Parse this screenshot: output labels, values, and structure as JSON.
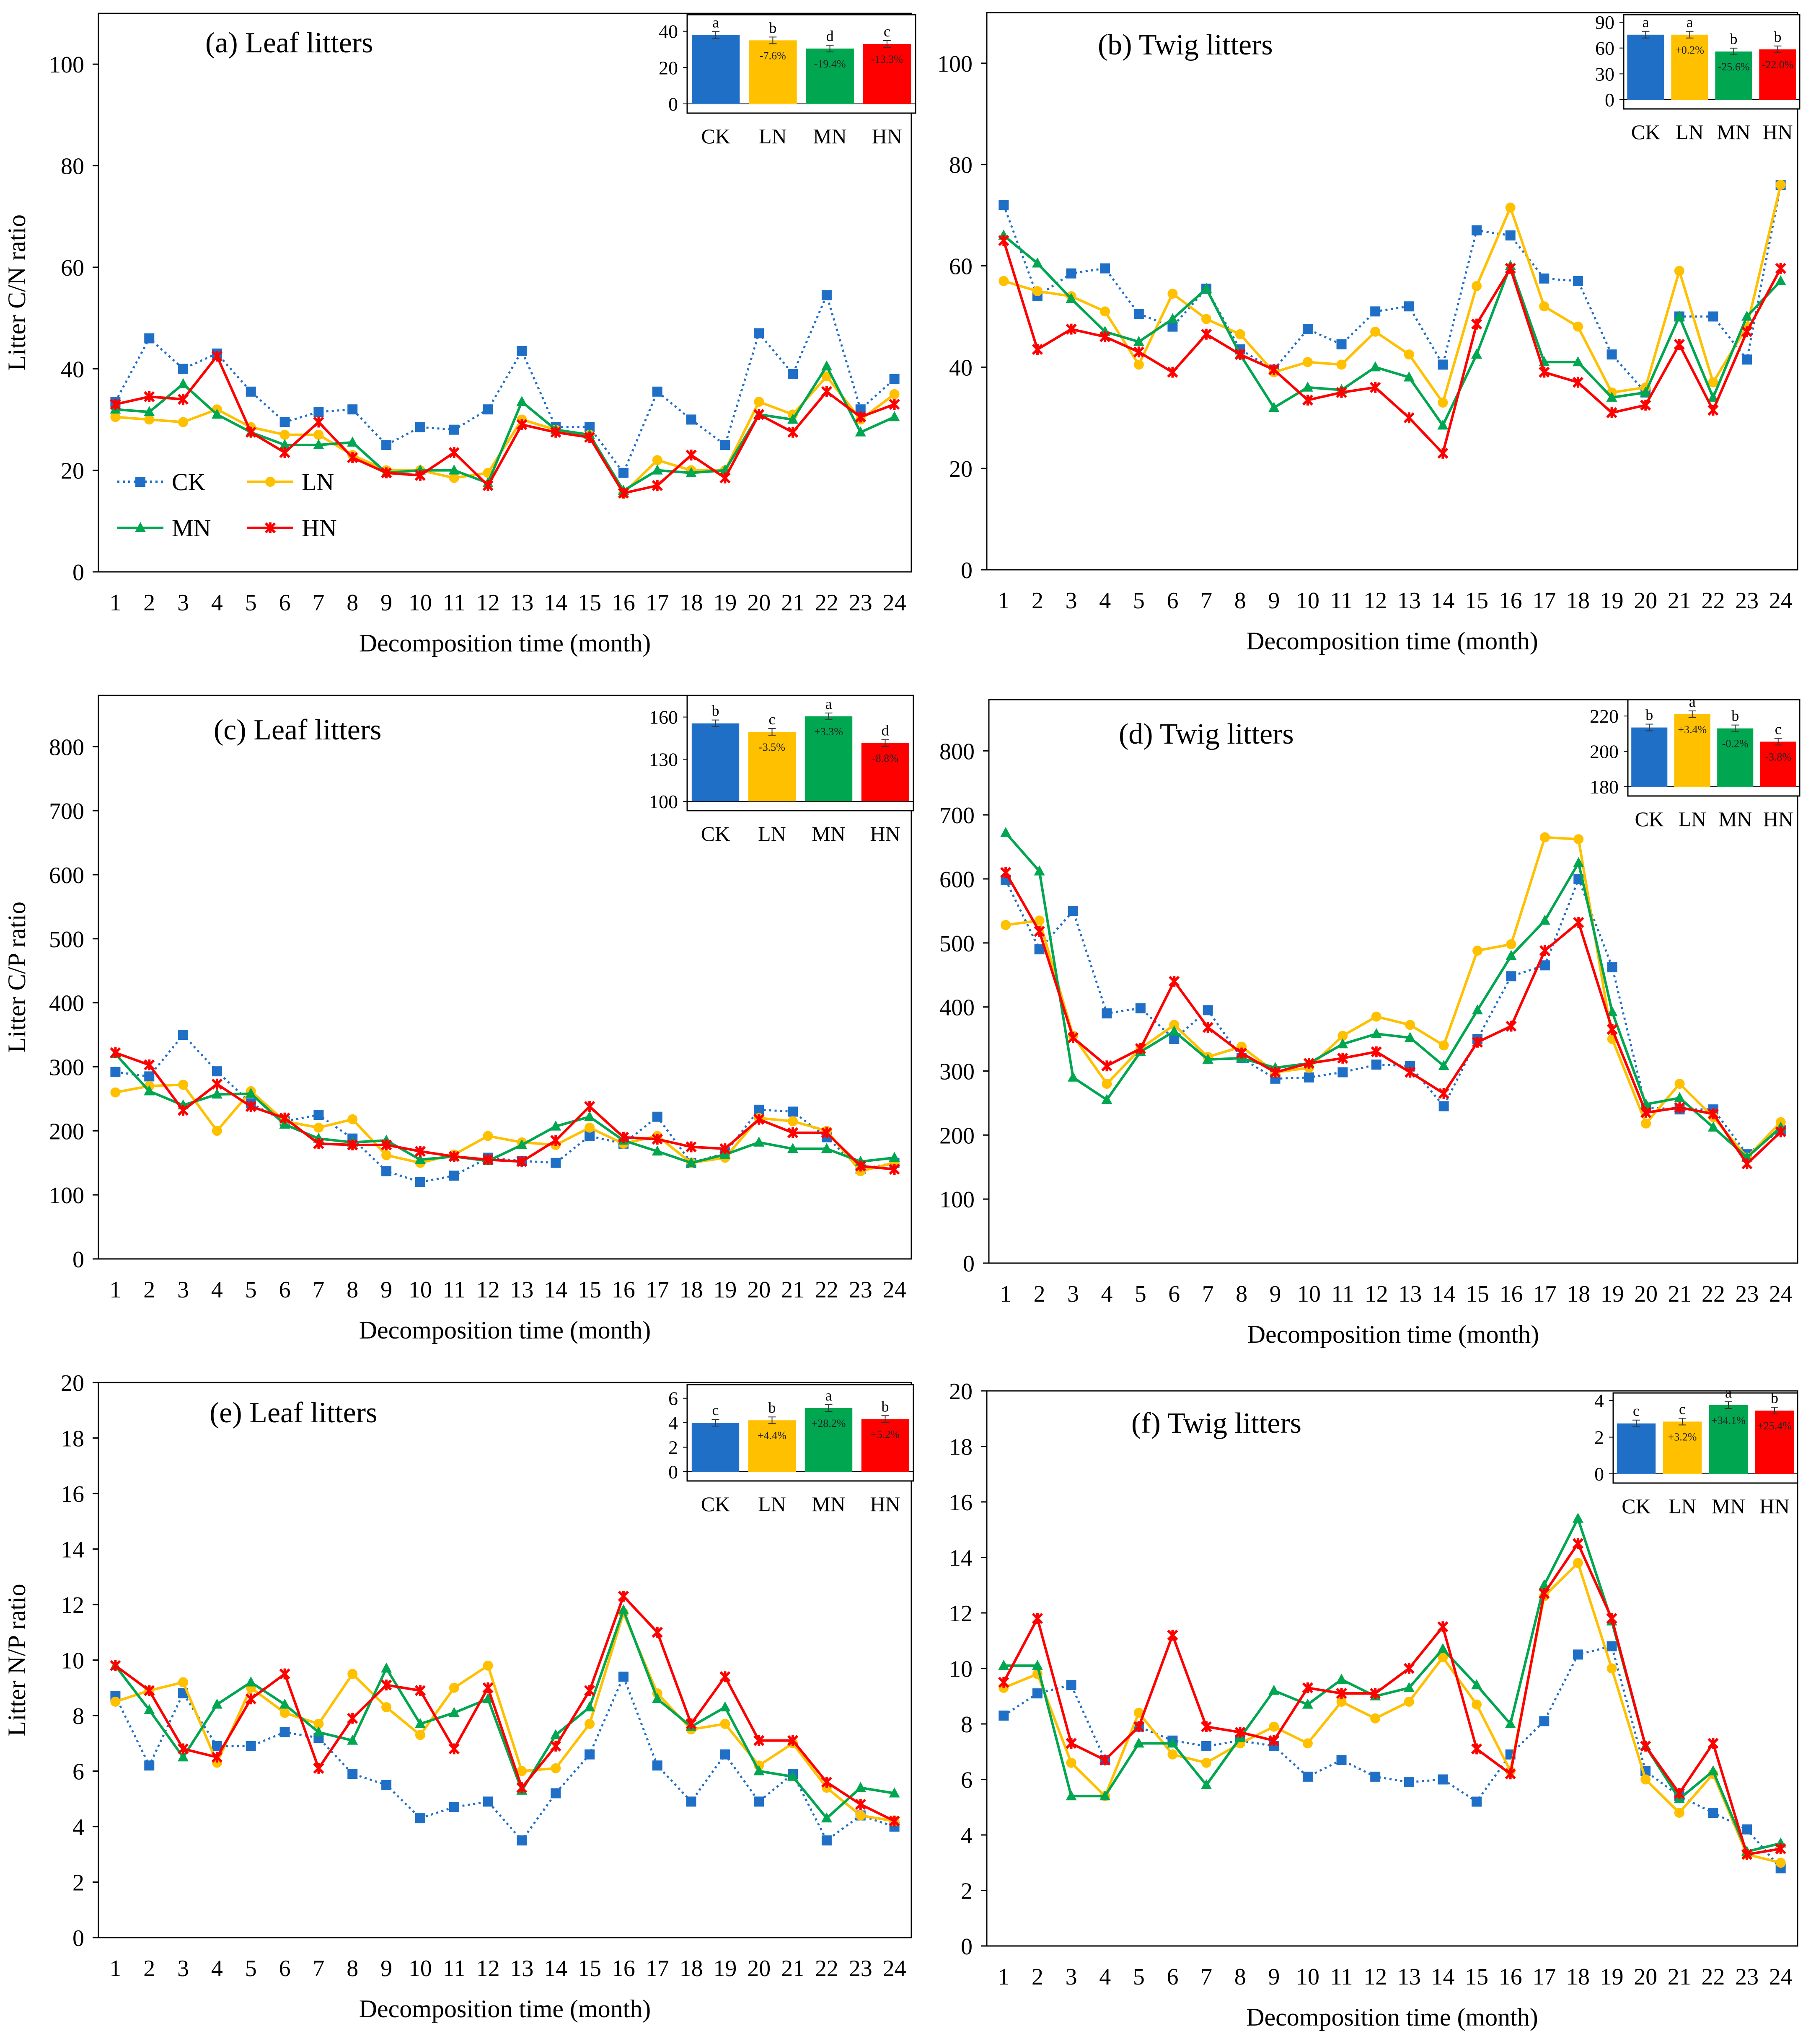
{
  "colors": {
    "CK": "#1f6fc6",
    "LN": "#ffc000",
    "MN": "#00a650",
    "HN": "#ff0000"
  },
  "legend": {
    "items": [
      "CK",
      "LN",
      "MN",
      "HN"
    ]
  },
  "chart_data": [
    {
      "id": "a",
      "type": "line",
      "title": "(a) Leaf litters",
      "xlabel": "Decomposition time (month)",
      "ylabel": "Litter C/N ratio",
      "ylim": [
        0,
        110
      ],
      "yticks": [
        0,
        20,
        40,
        60,
        80,
        100
      ],
      "categories": [
        "1",
        "2",
        "3",
        "4",
        "5",
        "6",
        "7",
        "8",
        "9",
        "10",
        "11",
        "12",
        "13",
        "14",
        "15",
        "16",
        "17",
        "18",
        "19",
        "20",
        "21",
        "22",
        "23",
        "24"
      ],
      "series": [
        {
          "name": "CK",
          "values": [
            33.5,
            46,
            40,
            43,
            35.5,
            29.5,
            31.5,
            32,
            25,
            28.5,
            28,
            32,
            43.5,
            28.5,
            28.5,
            19.5,
            35.5,
            30,
            25,
            47,
            39,
            54.5,
            32,
            38
          ]
        },
        {
          "name": "LN",
          "values": [
            30.5,
            30,
            29.5,
            32,
            28.5,
            27,
            27,
            23,
            20,
            20,
            18.5,
            19.5,
            30,
            28,
            27,
            15.5,
            22,
            20,
            20,
            33.5,
            31,
            38.5,
            30,
            35
          ]
        },
        {
          "name": "MN",
          "values": [
            32,
            31.5,
            37,
            31,
            27.5,
            25,
            25,
            25.5,
            19.5,
            20,
            20,
            17.5,
            33.5,
            28,
            27,
            16,
            20,
            19.5,
            20,
            31,
            30,
            40.5,
            27.5,
            30.5
          ]
        },
        {
          "name": "HN",
          "values": [
            33,
            34.5,
            34,
            42.5,
            27.5,
            23.5,
            29.5,
            22.5,
            19.5,
            19,
            23.5,
            17,
            29,
            27.5,
            26.5,
            15.5,
            17,
            23,
            18.5,
            31,
            27.5,
            35.5,
            30.5,
            33
          ]
        }
      ],
      "inset": {
        "ylim": [
          0,
          45
        ],
        "yticks": [
          0,
          20,
          40
        ],
        "categories": [
          "CK",
          "LN",
          "MN",
          "HN"
        ],
        "values": [
          38,
          35,
          30.5,
          33
        ],
        "letters": [
          "a",
          "b",
          "d",
          "c"
        ],
        "pct_labels": [
          "",
          "-7.6%",
          "-19.4%",
          "-13.3%"
        ]
      }
    },
    {
      "id": "b",
      "type": "line",
      "title": "(b) Twig litters",
      "xlabel": "Decomposition time (month)",
      "ylabel": "",
      "ylim": [
        0,
        110
      ],
      "yticks": [
        0,
        20,
        40,
        60,
        80,
        100
      ],
      "categories": [
        "1",
        "2",
        "3",
        "4",
        "5",
        "6",
        "7",
        "8",
        "9",
        "10",
        "11",
        "12",
        "13",
        "14",
        "15",
        "16",
        "17",
        "18",
        "19",
        "20",
        "21",
        "22",
        "23",
        "24"
      ],
      "series": [
        {
          "name": "CK",
          "values": [
            72,
            54,
            58.5,
            59.5,
            50.5,
            48,
            55.5,
            43.5,
            39.5,
            47.5,
            44.5,
            51,
            52,
            40.5,
            67,
            66,
            57.5,
            57,
            42.5,
            35,
            50,
            50,
            41.5,
            76
          ]
        },
        {
          "name": "LN",
          "values": [
            57,
            55,
            54,
            51,
            40.5,
            54.5,
            49.5,
            46.5,
            39,
            41,
            40.5,
            47,
            42.5,
            33,
            56,
            71.5,
            52,
            48,
            35,
            36,
            59,
            37,
            48,
            76
          ]
        },
        {
          "name": "MN",
          "values": [
            66,
            60.5,
            53.5,
            47,
            45,
            49.5,
            55.5,
            42.5,
            32,
            36,
            35.5,
            40,
            38,
            28.5,
            42.5,
            60,
            41,
            41,
            34,
            35,
            50,
            34,
            50,
            57
          ]
        },
        {
          "name": "HN",
          "values": [
            65,
            43.5,
            47.5,
            46,
            43,
            39,
            46.5,
            42.5,
            39.5,
            33.5,
            35,
            36,
            30,
            23,
            48.5,
            59.5,
            39,
            37,
            31,
            32.5,
            44.5,
            31.5,
            47,
            59.5
          ]
        }
      ],
      "inset": {
        "ylim": [
          0,
          90
        ],
        "yticks": [
          0,
          30,
          60,
          90
        ],
        "categories": [
          "CK",
          "LN",
          "MN",
          "HN"
        ],
        "values": [
          75.5,
          75.5,
          56,
          58.5
        ],
        "letters": [
          "a",
          "a",
          "b",
          "b"
        ],
        "pct_labels": [
          "",
          "+0.2%",
          "-25.6%",
          "-22.0%"
        ]
      }
    },
    {
      "id": "c",
      "type": "line",
      "title": "(c) Leaf litters",
      "xlabel": "Decomposition time (month)",
      "ylabel": "Litter C/P ratio",
      "ylim": [
        0,
        880
      ],
      "yticks": [
        0,
        100,
        200,
        300,
        400,
        500,
        600,
        700,
        800
      ],
      "categories": [
        "1",
        "2",
        "3",
        "4",
        "5",
        "6",
        "7",
        "8",
        "9",
        "10",
        "11",
        "12",
        "13",
        "14",
        "15",
        "16",
        "17",
        "18",
        "19",
        "20",
        "21",
        "22",
        "23",
        "24"
      ],
      "series": [
        {
          "name": "CK",
          "values": [
            292,
            285,
            350,
            293,
            243,
            215,
            225,
            188,
            137,
            120,
            130,
            158,
            153,
            150,
            192,
            180,
            222,
            150,
            165,
            233,
            230,
            190,
            140,
            150
          ]
        },
        {
          "name": "LN",
          "values": [
            260,
            270,
            272,
            200,
            262,
            215,
            205,
            218,
            162,
            150,
            163,
            192,
            182,
            178,
            205,
            180,
            192,
            150,
            158,
            220,
            215,
            200,
            137,
            150
          ]
        },
        {
          "name": "MN",
          "values": [
            320,
            262,
            240,
            257,
            258,
            210,
            188,
            182,
            185,
            155,
            160,
            153,
            178,
            207,
            222,
            185,
            168,
            150,
            163,
            182,
            172,
            172,
            152,
            158
          ]
        },
        {
          "name": "HN",
          "values": [
            322,
            303,
            232,
            273,
            238,
            220,
            180,
            178,
            178,
            168,
            160,
            155,
            152,
            185,
            238,
            190,
            187,
            175,
            172,
            218,
            197,
            197,
            145,
            140
          ]
        }
      ],
      "inset": {
        "ylim": [
          100,
          170
        ],
        "yticks": [
          100,
          130,
          160
        ],
        "categories": [
          "CK",
          "LN",
          "MN",
          "HN"
        ],
        "values": [
          155.5,
          149.5,
          160.5,
          141.5
        ],
        "letters": [
          "b",
          "c",
          "a",
          "d"
        ],
        "pct_labels": [
          "",
          "-3.5%",
          "+3.3%",
          "-8.8%"
        ]
      }
    },
    {
      "id": "d",
      "type": "line",
      "title": "(d) Twig litters",
      "xlabel": "Decomposition time (month)",
      "ylabel": "",
      "ylim": [
        0,
        880
      ],
      "yticks": [
        0,
        100,
        200,
        300,
        400,
        500,
        600,
        700,
        800
      ],
      "categories": [
        "1",
        "2",
        "3",
        "4",
        "5",
        "6",
        "7",
        "8",
        "9",
        "10",
        "11",
        "12",
        "13",
        "14",
        "15",
        "16",
        "17",
        "18",
        "19",
        "20",
        "21",
        "22",
        "23",
        "24"
      ],
      "series": [
        {
          "name": "CK",
          "values": [
            598,
            490,
            550,
            390,
            398,
            350,
            395,
            320,
            288,
            290,
            298,
            310,
            308,
            245,
            350,
            448,
            465,
            600,
            462,
            243,
            240,
            240,
            170,
            208
          ]
        },
        {
          "name": "LN",
          "values": [
            528,
            535,
            355,
            280,
            335,
            372,
            322,
            338,
            298,
            305,
            355,
            385,
            372,
            340,
            488,
            498,
            665,
            662,
            350,
            218,
            280,
            228,
            165,
            220
          ]
        },
        {
          "name": "MN",
          "values": [
            672,
            612,
            290,
            255,
            330,
            362,
            318,
            320,
            305,
            312,
            342,
            358,
            352,
            308,
            395,
            480,
            535,
            625,
            392,
            248,
            258,
            212,
            165,
            212
          ]
        },
        {
          "name": "HN",
          "values": [
            610,
            518,
            352,
            308,
            335,
            440,
            368,
            328,
            298,
            312,
            320,
            330,
            298,
            265,
            345,
            370,
            488,
            532,
            365,
            235,
            243,
            233,
            155,
            205
          ]
        }
      ],
      "inset": {
        "ylim": [
          180,
          225
        ],
        "yticks": [
          180,
          200,
          220
        ],
        "categories": [
          "CK",
          "LN",
          "MN",
          "HN"
        ],
        "values": [
          213.5,
          221,
          213,
          205.5
        ],
        "letters": [
          "b",
          "a",
          "b",
          "c"
        ],
        "pct_labels": [
          "",
          "+3.4%",
          "-0.2%",
          "-3.8%"
        ]
      }
    },
    {
      "id": "e",
      "type": "line",
      "title": "(e) Leaf litters",
      "xlabel": "Decomposition time (month)",
      "ylabel": "Litter N/P ratio",
      "ylim": [
        0,
        20
      ],
      "yticks": [
        0,
        2,
        4,
        6,
        8,
        10,
        12,
        14,
        16,
        18,
        20
      ],
      "categories": [
        "1",
        "2",
        "3",
        "4",
        "5",
        "6",
        "7",
        "8",
        "9",
        "10",
        "11",
        "12",
        "13",
        "14",
        "15",
        "16",
        "17",
        "18",
        "19",
        "20",
        "21",
        "22",
        "23",
        "24"
      ],
      "series": [
        {
          "name": "CK",
          "values": [
            8.7,
            6.2,
            8.8,
            6.9,
            6.9,
            7.4,
            7.2,
            5.9,
            5.5,
            4.3,
            4.7,
            4.9,
            3.5,
            5.2,
            6.6,
            9.4,
            6.2,
            4.9,
            6.6,
            4.9,
            5.9,
            3.5,
            4.4,
            4.0
          ]
        },
        {
          "name": "LN",
          "values": [
            8.5,
            8.9,
            9.2,
            6.3,
            9.0,
            8.1,
            7.7,
            9.5,
            8.3,
            7.3,
            9.0,
            9.8,
            6.0,
            6.1,
            7.7,
            11.7,
            8.8,
            7.5,
            7.7,
            6.2,
            7.0,
            5.4,
            4.4,
            4.2
          ]
        },
        {
          "name": "MN",
          "values": [
            9.8,
            8.2,
            6.5,
            8.4,
            9.2,
            8.4,
            7.4,
            7.1,
            9.7,
            7.7,
            8.1,
            8.6,
            5.3,
            7.3,
            8.3,
            11.8,
            8.6,
            7.6,
            8.3,
            6.0,
            5.8,
            4.3,
            5.4,
            5.2
          ]
        },
        {
          "name": "HN",
          "values": [
            9.8,
            8.9,
            6.8,
            6.5,
            8.6,
            9.5,
            6.1,
            7.9,
            9.1,
            8.9,
            6.8,
            9.0,
            5.4,
            6.9,
            8.9,
            12.3,
            11.0,
            7.7,
            9.4,
            7.1,
            7.1,
            5.6,
            4.8,
            4.2
          ]
        }
      ],
      "inset": {
        "ylim": [
          0,
          6.5
        ],
        "yticks": [
          0,
          2,
          4,
          6
        ],
        "categories": [
          "CK",
          "LN",
          "MN",
          "HN"
        ],
        "values": [
          4.0,
          4.2,
          5.2,
          4.3
        ],
        "letters": [
          "c",
          "b",
          "a",
          "b"
        ],
        "pct_labels": [
          "",
          "+4.4%",
          "+28.2%",
          "+5.2%"
        ]
      }
    },
    {
      "id": "f",
      "type": "line",
      "title": "(f) Twig litters",
      "xlabel": "Decomposition time (month)",
      "ylabel": "",
      "ylim": [
        0,
        20
      ],
      "yticks": [
        0,
        2,
        4,
        6,
        8,
        10,
        12,
        14,
        16,
        18,
        20
      ],
      "categories": [
        "1",
        "2",
        "3",
        "4",
        "5",
        "6",
        "7",
        "8",
        "9",
        "10",
        "11",
        "12",
        "13",
        "14",
        "15",
        "16",
        "17",
        "18",
        "19",
        "20",
        "21",
        "22",
        "23",
        "24"
      ],
      "series": [
        {
          "name": "CK",
          "values": [
            8.3,
            9.1,
            9.4,
            6.7,
            7.9,
            7.4,
            7.2,
            7.4,
            7.2,
            6.1,
            6.7,
            6.1,
            5.9,
            6.0,
            5.2,
            6.9,
            8.1,
            10.5,
            10.8,
            6.3,
            5.4,
            4.8,
            4.2,
            2.8
          ]
        },
        {
          "name": "LN",
          "values": [
            9.3,
            9.8,
            6.6,
            5.4,
            8.4,
            6.9,
            6.6,
            7.3,
            7.9,
            7.3,
            8.8,
            8.2,
            8.8,
            10.4,
            8.7,
            6.3,
            12.6,
            13.8,
            10.0,
            6.0,
            4.8,
            6.2,
            3.3,
            3.0
          ]
        },
        {
          "name": "MN",
          "values": [
            10.1,
            10.1,
            5.4,
            5.4,
            7.3,
            7.3,
            5.8,
            7.5,
            9.2,
            8.7,
            9.6,
            9.0,
            9.3,
            10.7,
            9.4,
            8.0,
            13.0,
            15.4,
            11.7,
            7.2,
            5.3,
            6.3,
            3.4,
            3.7
          ]
        },
        {
          "name": "HN",
          "values": [
            9.5,
            11.8,
            7.3,
            6.7,
            7.9,
            11.2,
            7.9,
            7.7,
            7.4,
            9.3,
            9.1,
            9.1,
            10.0,
            11.5,
            7.1,
            6.2,
            12.7,
            14.5,
            11.8,
            7.2,
            5.5,
            7.3,
            3.3,
            3.5
          ]
        }
      ],
      "inset": {
        "ylim": [
          0,
          4
        ],
        "yticks": [
          0,
          2,
          4
        ],
        "categories": [
          "CK",
          "LN",
          "MN",
          "HN"
        ],
        "values": [
          2.75,
          2.85,
          3.75,
          3.45
        ],
        "letters": [
          "c",
          "c",
          "a",
          "b"
        ],
        "pct_labels": [
          "",
          "+3.2%",
          "+34.1%",
          "+25.4%"
        ]
      }
    }
  ]
}
